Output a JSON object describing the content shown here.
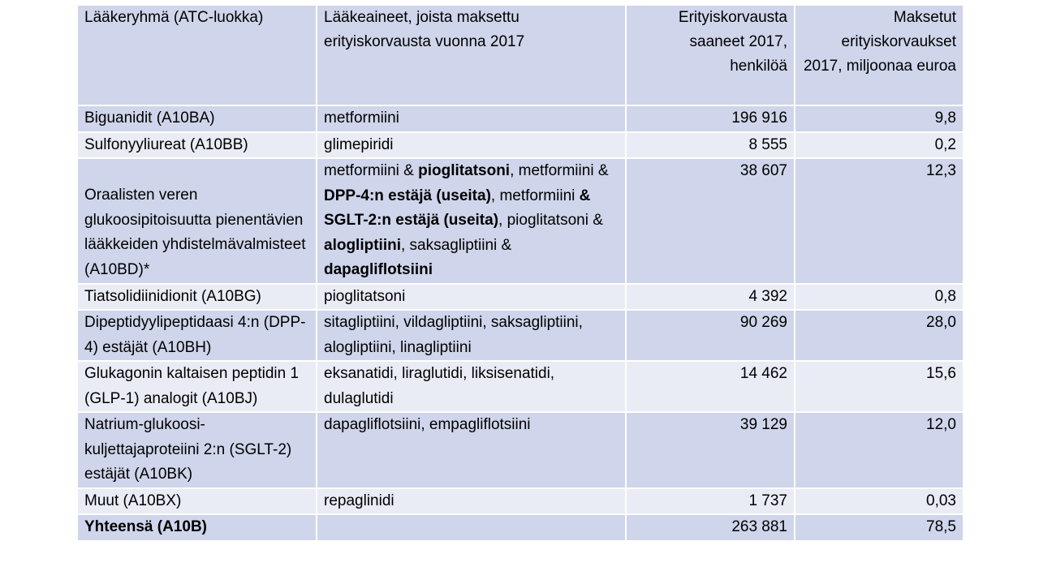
{
  "headers": {
    "group": "Lääkeryhmä (ATC-luokka)",
    "substances": "Lääkeaineet, joista maksettu erityiskorvausta vuonna 2017",
    "persons": "Erityiskorvausta saaneet 2017, henkilöä",
    "euros": "Maksetut erityiskorvaukset 2017, miljoonaa euroa"
  },
  "rows": [
    {
      "group": "Biguanidit (A10BA)",
      "substances": "metformiini",
      "persons": "196 916",
      "euros": "9,8"
    },
    {
      "group": "Sulfonyyliureat (A10BB)",
      "substances": "glimepiridi",
      "persons": "8 555",
      "euros": "0,2"
    },
    {
      "group": "Oraalisten veren glukoosipitoisuutta pienentävien lääkkeiden yhdistelmävalmisteet (A10BD)*",
      "substances_parts": [
        {
          "t": "metformiini & ",
          "b": false
        },
        {
          "t": "pioglitatsoni",
          "b": true
        },
        {
          "t": ", metformiini & ",
          "b": false
        },
        {
          "t": "DPP-4:n estäjä (useita)",
          "b": true
        },
        {
          "t": ", metformiini ",
          "b": false
        },
        {
          "t": "& SGLT-2:n estäjä (useita)",
          "b": true
        },
        {
          "t": ", pioglitatsoni & ",
          "b": false
        },
        {
          "t": "alogliptiini",
          "b": true
        },
        {
          "t": ", saksagliptiini & ",
          "b": false
        },
        {
          "t": "dapagliflotsiini",
          "b": true
        }
      ],
      "persons": "38 607",
      "euros": "12,3"
    },
    {
      "group": "Tiatsolidiinidionit (A10BG)",
      "substances": "pioglitatsoni",
      "persons": "4 392",
      "euros": "0,8"
    },
    {
      "group": "Dipeptidyylipeptidaasi 4:n (DPP-4) estäjät (A10BH)",
      "substances": "sitagliptiini, vildagliptiini, saksagliptiini, alogliptiini, linagliptiini",
      "persons": "90 269",
      "euros": "28,0"
    },
    {
      "group": "Glukagonin kaltaisen peptidin 1 (GLP-1) analogit (A10BJ)",
      "substances": "eksanatidi, liraglutidi, liksisenatidi, dulaglutidi",
      "persons": "14 462",
      "euros": "15,6"
    },
    {
      "group": "Natrium-glukoosi-kuljettajaproteiini 2:n (SGLT-2) estäjät (A10BK)",
      "substances": "dapagliflotsiini, empagliflotsiini",
      "persons": "39 129",
      "euros": "12,0"
    },
    {
      "group": "Muut (A10BX)",
      "substances": "repaglinidi",
      "persons": "1 737",
      "euros": "0,03"
    }
  ],
  "total": {
    "group": "Yhteensä (A10B)",
    "substances": "",
    "persons": "263 881",
    "euros": "78,5"
  }
}
